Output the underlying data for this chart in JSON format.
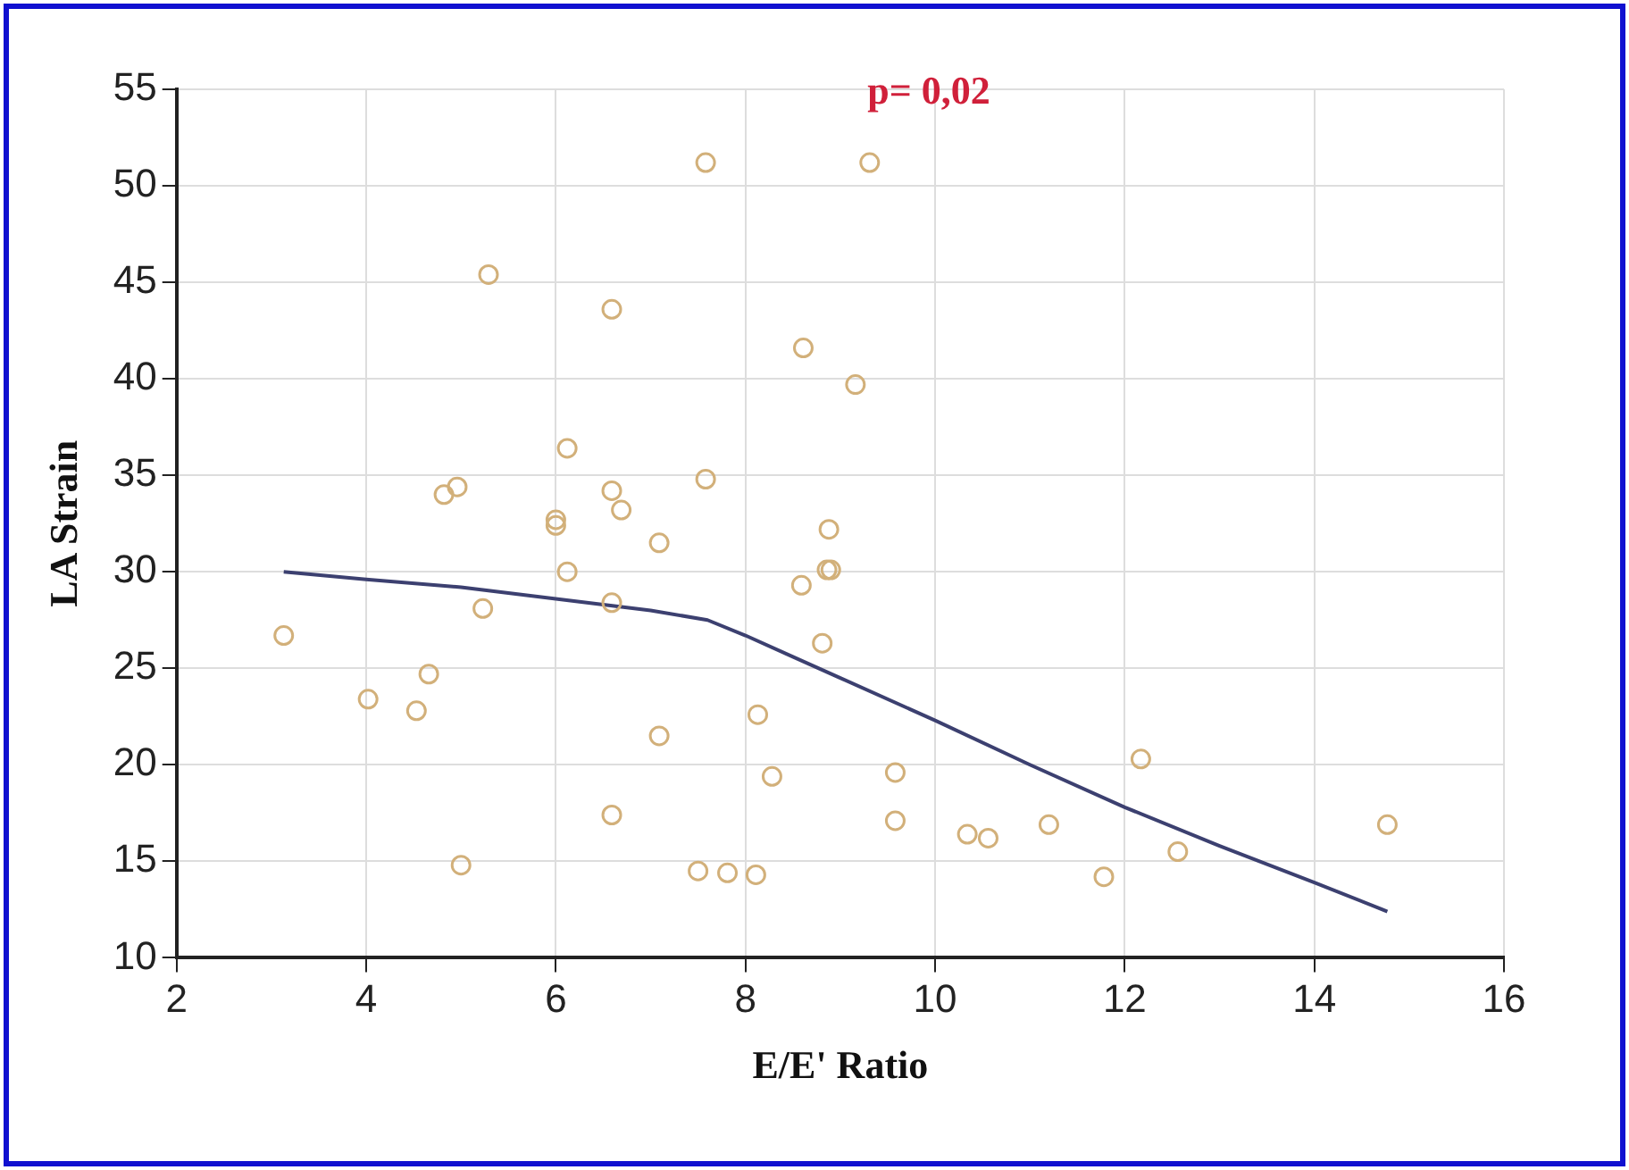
{
  "chart_data": {
    "type": "scatter",
    "xlabel": "E/E' Ratio",
    "ylabel": "LA Strain",
    "annotations": [
      "p= 0,02"
    ],
    "xlim": [
      2,
      16
    ],
    "xticks": [
      2,
      4,
      6,
      8,
      10,
      12,
      14,
      16
    ],
    "ylim": [
      10,
      55
    ],
    "yticks": [
      10,
      15,
      20,
      25,
      30,
      35,
      40,
      45,
      50,
      55
    ],
    "grid": true,
    "marker": "circle",
    "series": [
      {
        "color": "#d2b07a",
        "x": [
          3.13,
          4.02,
          4.66,
          4.53,
          4.82,
          4.96,
          5.0,
          5.23,
          5.29,
          6.0,
          6.0,
          6.12,
          6.12,
          6.59,
          6.59,
          6.59,
          6.59,
          6.69,
          7.09,
          7.09,
          7.5,
          7.58,
          7.58,
          7.81,
          8.61,
          9.16,
          9.31,
          8.13,
          8.11,
          8.28,
          8.59,
          8.81,
          8.88,
          8.86,
          8.9,
          9.58,
          9.58,
          10.34,
          10.56,
          11.2,
          11.78,
          12.17,
          12.56,
          14.77
        ],
        "values": [
          26.7,
          23.4,
          24.7,
          22.8,
          34.0,
          34.4,
          14.8,
          28.1,
          45.4,
          32.7,
          32.4,
          30.0,
          36.4,
          43.6,
          34.2,
          28.4,
          17.4,
          33.2,
          31.5,
          21.5,
          14.5,
          51.2,
          34.8,
          14.4,
          41.6,
          39.7,
          51.2,
          22.6,
          14.3,
          19.4,
          29.3,
          26.3,
          32.2,
          30.1,
          30.1,
          19.6,
          17.1,
          16.4,
          16.2,
          16.9,
          14.2,
          20.3,
          15.5,
          16.9
        ]
      },
      {
        "type": "line",
        "color": "#3c4070",
        "marker": "none",
        "x": [
          3.13,
          4,
          5,
          6,
          7,
          7.6,
          8,
          8.5,
          9,
          10,
          11,
          12,
          13,
          14,
          14.77
        ],
        "values": [
          30.0,
          29.6,
          29.2,
          28.6,
          28.0,
          27.5,
          26.7,
          25.6,
          24.5,
          22.3,
          20.0,
          17.8,
          15.8,
          13.9,
          12.4
        ]
      }
    ]
  }
}
